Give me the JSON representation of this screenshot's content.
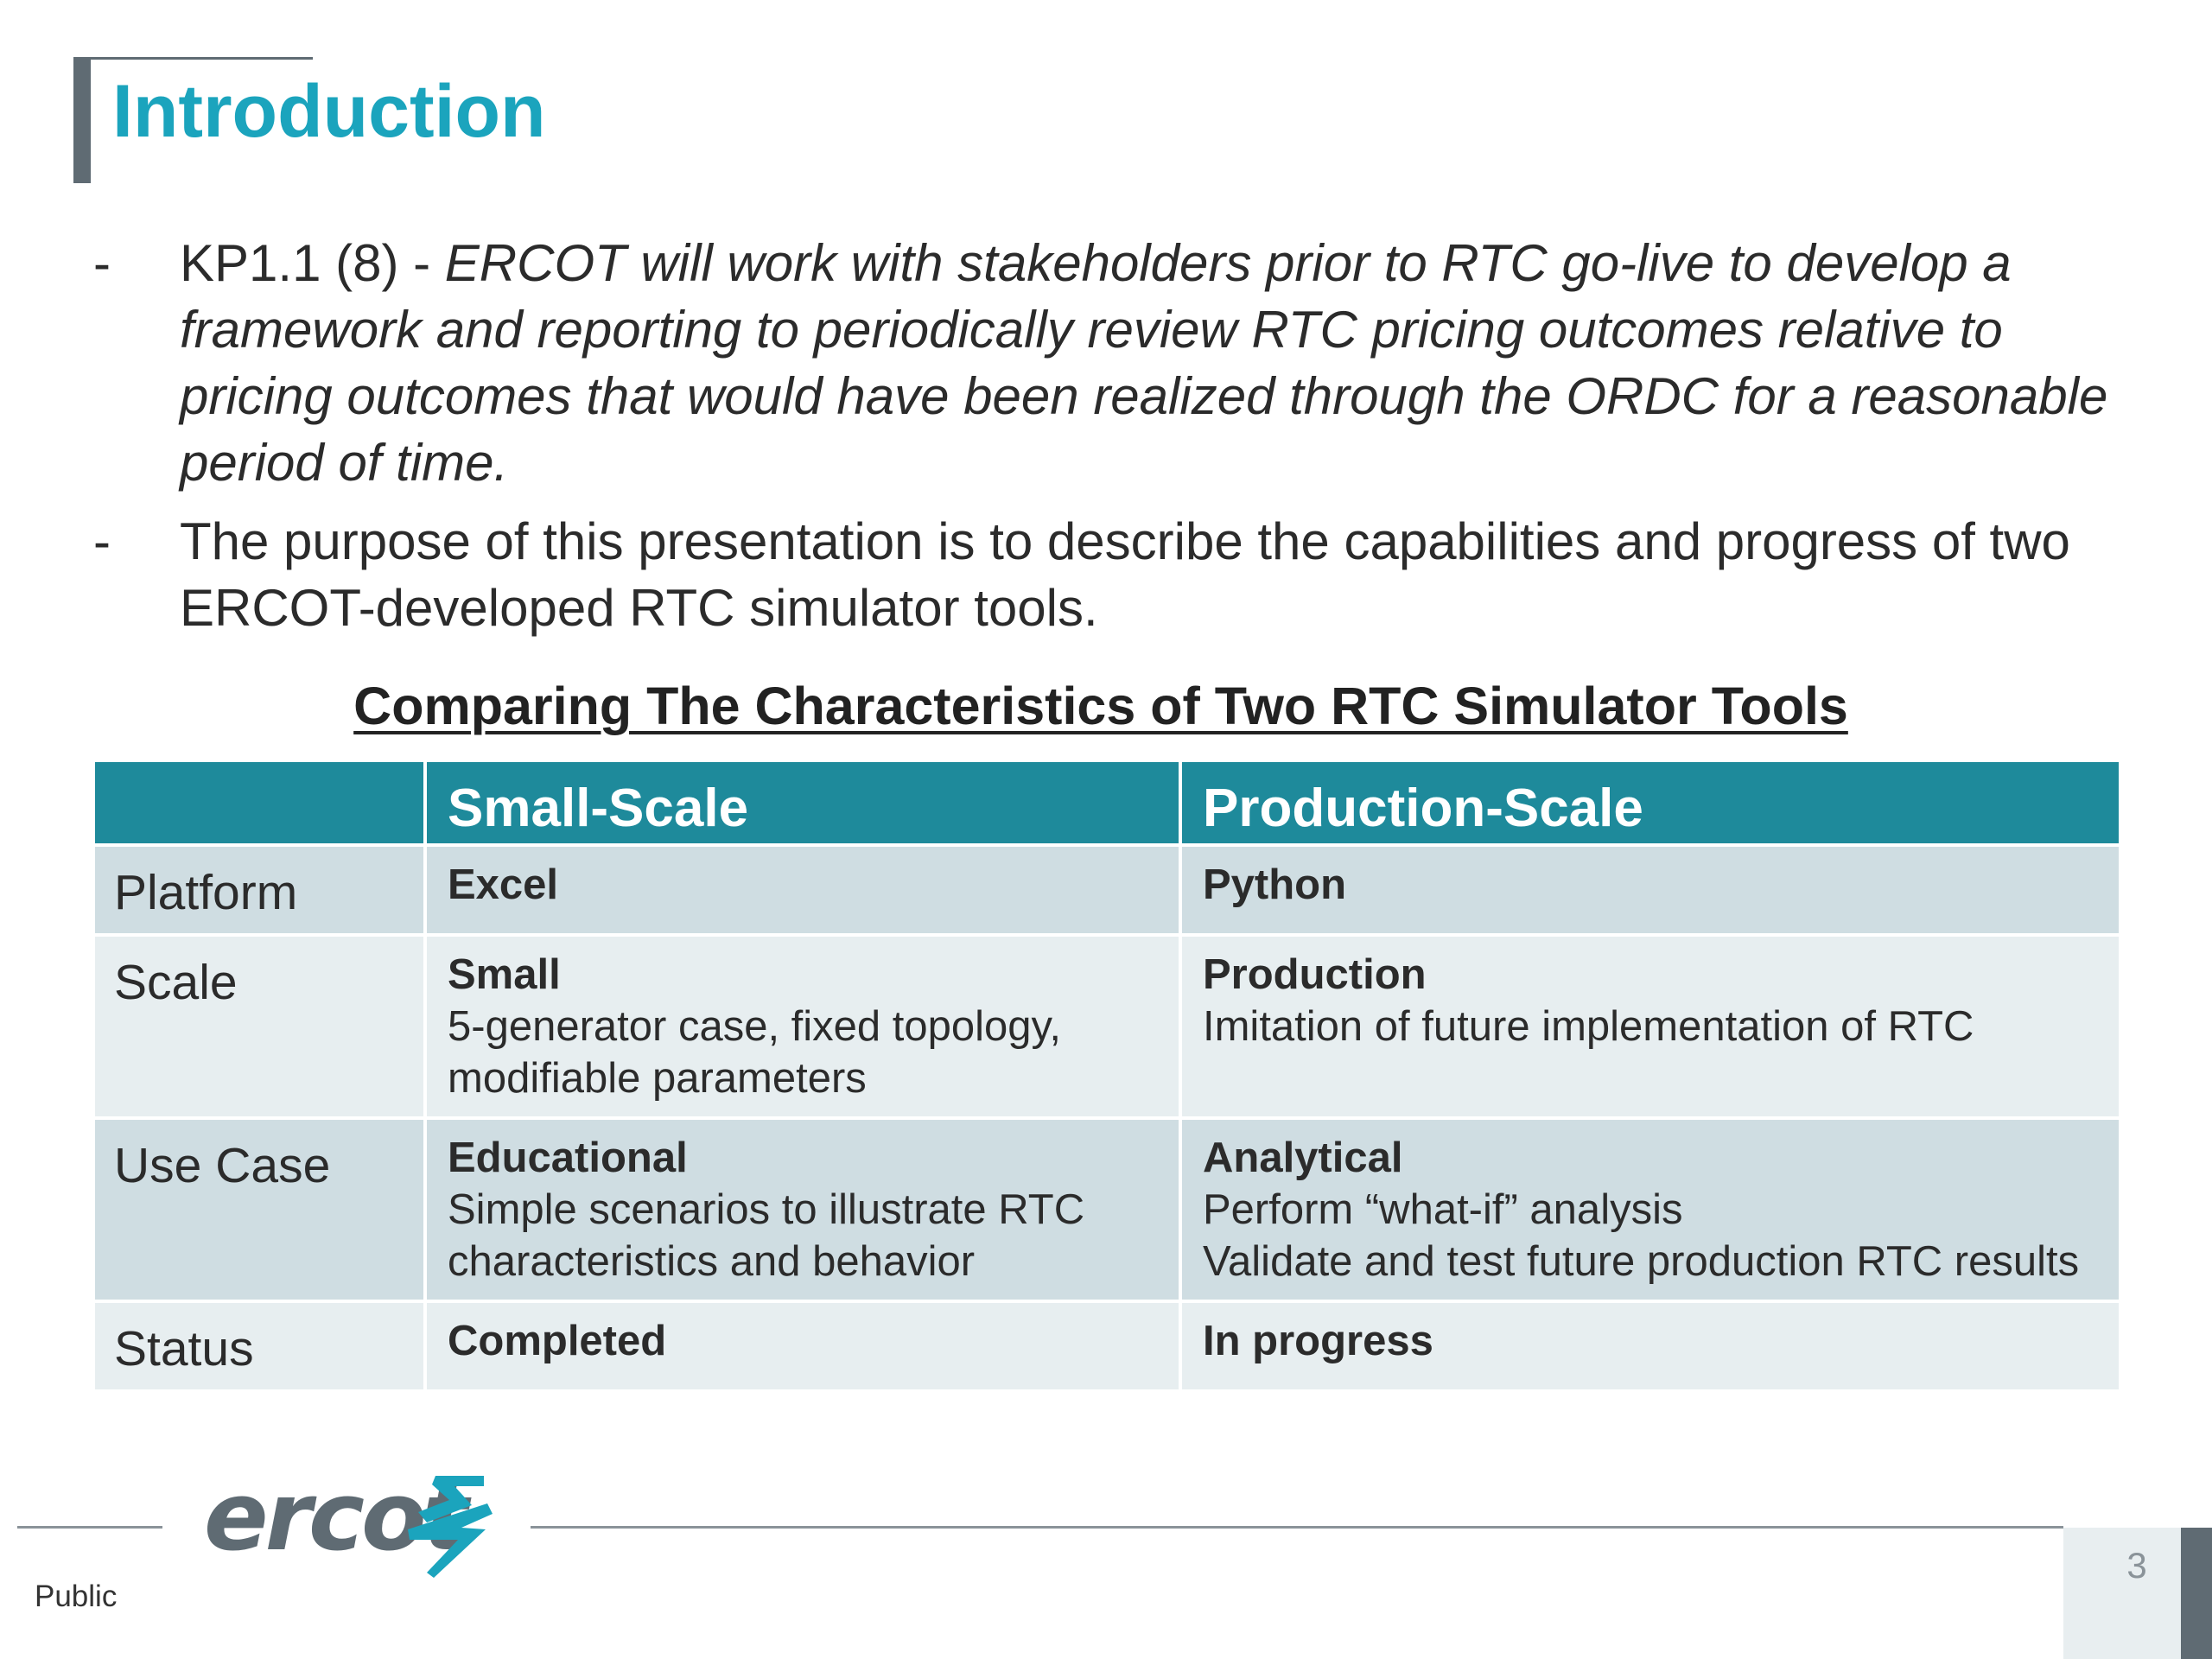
{
  "slide": {
    "title": "Introduction",
    "bullets": [
      {
        "dash": "-",
        "lead": "KP1.1 (8) - ",
        "italic": "ERCOT will work with stakeholders prior to RTC go-live to develop a framework and reporting to periodically review RTC pricing outcomes relative to pricing outcomes that would have been realized through the ORDC for a reasonable period of time."
      },
      {
        "dash": "-",
        "text": "The purpose of this presentation is to describe the capabilities and progress of two ERCOT-developed RTC simulator tools."
      }
    ],
    "table_heading": "Comparing The Characteristics of Two RTC Simulator Tools",
    "table": {
      "headers": [
        "",
        "Small-Scale",
        "Production-Scale"
      ],
      "rows": [
        {
          "label": "Platform",
          "small": {
            "bold": "Excel",
            "lines": []
          },
          "production": {
            "bold": "Python",
            "lines": []
          }
        },
        {
          "label": "Scale",
          "small": {
            "bold": "Small",
            "lines": [
              "5-generator case, fixed topology,",
              "modifiable parameters"
            ]
          },
          "production": {
            "bold": "Production",
            "lines": [
              "Imitation of future implementation of RTC"
            ]
          }
        },
        {
          "label": "Use Case",
          "small": {
            "bold": "Educational",
            "lines": [
              "Simple scenarios to illustrate RTC",
              "characteristics and behavior"
            ]
          },
          "production": {
            "bold": "Analytical",
            "lines": [
              "Perform “what-if” analysis",
              "Validate and test future production RTC results"
            ]
          }
        },
        {
          "label": "Status",
          "small": {
            "bold": "Completed",
            "lines": []
          },
          "production": {
            "bold": "In progress",
            "lines": []
          }
        }
      ]
    },
    "footer": {
      "logo_text": "ercot",
      "classification": "Public",
      "page_number": "3"
    },
    "colors": {
      "title": "#1ba4bd",
      "header_fill": "#1e8a9b",
      "row_dark": "#cfdde2",
      "row_light": "#e7eef0",
      "logo_gray": "#5f6b73",
      "logo_teal": "#1ba4bd"
    }
  }
}
